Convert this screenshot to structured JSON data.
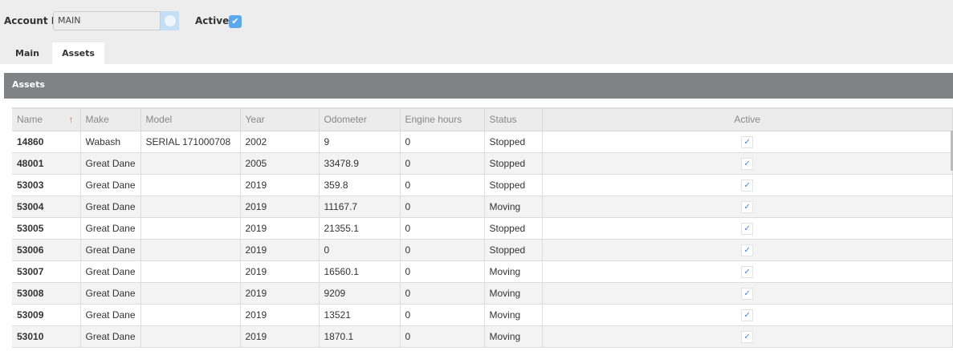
{
  "header": {
    "account_label": "Account Id",
    "account_value": "MAIN",
    "active_label": "Active",
    "active_checked": true
  },
  "tabs": [
    {
      "label": "Main",
      "active": false
    },
    {
      "label": "Assets",
      "active": true
    }
  ],
  "panel": {
    "title": "Assets"
  },
  "table": {
    "columns": [
      "Name",
      "Make",
      "Model",
      "Year",
      "Odometer",
      "Engine hours",
      "Status",
      "Active"
    ],
    "sort": {
      "column": "Name",
      "direction": "ascending"
    },
    "rows": [
      [
        "14860",
        "Wabash",
        "SERIAL 171000708",
        "2002",
        "9",
        "0",
        "Stopped",
        true
      ],
      [
        "48001",
        "Great Dane",
        "",
        "2005",
        "33478.9",
        "0",
        "Stopped",
        true
      ],
      [
        "53003",
        "Great Dane",
        "",
        "2019",
        "359.8",
        "0",
        "Stopped",
        true
      ],
      [
        "53004",
        "Great Dane",
        "",
        "2019",
        "11167.7",
        "0",
        "Moving",
        true
      ],
      [
        "53005",
        "Great Dane",
        "",
        "2019",
        "21355.1",
        "0",
        "Stopped",
        true
      ],
      [
        "53006",
        "Great Dane",
        "",
        "2019",
        "0",
        "0",
        "Stopped",
        true
      ],
      [
        "53007",
        "Great Dane",
        "",
        "2019",
        "16560.1",
        "0",
        "Moving",
        true
      ],
      [
        "53008",
        "Great Dane",
        "",
        "2019",
        "9209",
        "0",
        "Moving",
        true
      ],
      [
        "53009",
        "Great Dane",
        "",
        "2019",
        "13521",
        "0",
        "Moving",
        true
      ],
      [
        "53010",
        "Great Dane",
        "",
        "2019",
        "1870.1",
        "0",
        "Moving",
        true
      ]
    ]
  }
}
